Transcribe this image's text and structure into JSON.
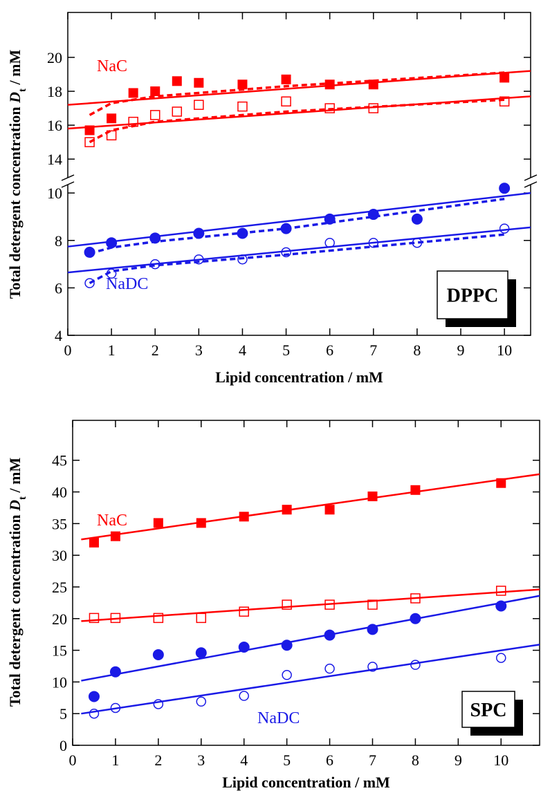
{
  "chart_data": [
    {
      "type": "scatter",
      "label": "DPPC",
      "xlabel": "Lipid concentration / mM",
      "ylabel": {
        "text": "Total detergent concentration ",
        "symbol": "D",
        "subscript": "t",
        "unit": " / mM"
      },
      "xlim": [
        0,
        10.6
      ],
      "xticks": [
        0,
        1,
        2,
        3,
        4,
        5,
        6,
        7,
        8,
        9,
        10
      ],
      "ysegments": [
        {
          "ylim": [
            4,
            10.5
          ]
        },
        {
          "ylim": [
            12.7,
            22.65
          ]
        }
      ],
      "yticks": [
        4,
        6,
        8,
        10,
        14,
        16,
        18,
        20
      ],
      "annotations": [
        {
          "text": "NaC",
          "color": "#ff0000"
        },
        {
          "text": "NaDC",
          "color": "#1a1ae6"
        }
      ],
      "series": [
        {
          "color": "#ff0000",
          "marker": "square",
          "filled": true,
          "x": [
            0.5,
            1,
            1.5,
            2,
            2.5,
            3,
            4,
            5,
            6,
            7,
            10
          ],
          "values": [
            15.7,
            16.4,
            17.9,
            18.0,
            18.6,
            18.5,
            18.4,
            18.7,
            18.4,
            18.4,
            18.8
          ]
        },
        {
          "color": "#ff0000",
          "marker": "square",
          "filled": false,
          "x": [
            0.5,
            1,
            1.5,
            2,
            2.5,
            3,
            4,
            5,
            6,
            7,
            10
          ],
          "values": [
            15.0,
            15.4,
            16.2,
            16.6,
            16.8,
            17.2,
            17.1,
            17.4,
            17.0,
            17.0,
            17.4
          ]
        },
        {
          "color": "#1a1ae6",
          "marker": "circle",
          "filled": true,
          "x": [
            0.5,
            1,
            2,
            3,
            4,
            5,
            6,
            7,
            8,
            10
          ],
          "values": [
            7.5,
            7.9,
            8.1,
            8.3,
            8.3,
            8.5,
            8.9,
            9.1,
            8.9,
            10.2
          ]
        },
        {
          "color": "#1a1ae6",
          "marker": "circle",
          "filled": false,
          "x": [
            0.5,
            1,
            2,
            3,
            4,
            5,
            6,
            7,
            8,
            10
          ],
          "values": [
            6.2,
            6.6,
            7.0,
            7.2,
            7.2,
            7.5,
            7.9,
            7.9,
            7.9,
            8.5
          ]
        },
        {
          "color": "#ff0000",
          "line": "solid",
          "x": [
            0,
            10.6
          ],
          "values": [
            17.2,
            19.2
          ]
        },
        {
          "color": "#ff0000",
          "line": "solid",
          "x": [
            0,
            10.6
          ],
          "values": [
            15.8,
            17.7
          ]
        },
        {
          "color": "#1a1ae6",
          "line": "solid",
          "x": [
            0,
            10.6
          ],
          "values": [
            7.74,
            10.0
          ]
        },
        {
          "color": "#1a1ae6",
          "line": "solid",
          "x": [
            0,
            10.6
          ],
          "values": [
            6.65,
            8.55
          ]
        },
        {
          "color": "#ff0000",
          "line": "dashed",
          "x": [
            0.5,
            1,
            2,
            5,
            10
          ],
          "values": [
            16.6,
            17.3,
            17.7,
            18.3,
            19.1
          ]
        },
        {
          "color": "#ff0000",
          "line": "dashed",
          "x": [
            0.5,
            1,
            2,
            5,
            10
          ],
          "values": [
            15.0,
            15.7,
            16.2,
            16.8,
            17.5
          ]
        },
        {
          "color": "#1a1ae6",
          "line": "dashed",
          "x": [
            0.5,
            1,
            2,
            5,
            10
          ],
          "values": [
            7.45,
            7.7,
            7.95,
            8.5,
            9.75
          ]
        },
        {
          "color": "#1a1ae6",
          "line": "dashed",
          "x": [
            0.5,
            1,
            2,
            5,
            10
          ],
          "values": [
            6.2,
            6.7,
            6.95,
            7.4,
            8.25
          ]
        }
      ]
    },
    {
      "type": "scatter",
      "label": "SPC",
      "xlabel": "Lipid concentration / mM",
      "ylabel": {
        "text": "Total detergent concentration ",
        "symbol": "D",
        "subscript": "t",
        "unit": " / mM"
      },
      "xlim": [
        0,
        10.9
      ],
      "xticks": [
        0,
        1,
        2,
        3,
        4,
        5,
        6,
        7,
        8,
        9,
        10
      ],
      "ylim": [
        0,
        51.3
      ],
      "yticks": [
        0,
        5,
        10,
        15,
        20,
        25,
        30,
        35,
        40,
        45
      ],
      "annotations": [
        {
          "text": "NaC",
          "color": "#ff0000"
        },
        {
          "text": "NaDC",
          "color": "#1a1ae6"
        }
      ],
      "series": [
        {
          "color": "#ff0000",
          "marker": "square",
          "filled": true,
          "x": [
            0.5,
            1,
            2,
            3,
            4,
            5,
            6,
            7,
            8,
            10
          ],
          "values": [
            32.0,
            33.0,
            35.1,
            35.1,
            36.1,
            37.2,
            37.2,
            39.3,
            40.3,
            41.4
          ]
        },
        {
          "color": "#ff0000",
          "marker": "square",
          "filled": false,
          "x": [
            0.5,
            1,
            2,
            3,
            4,
            5,
            6,
            7,
            8,
            10
          ],
          "values": [
            20.1,
            20.1,
            20.1,
            20.1,
            21.1,
            22.2,
            22.2,
            22.2,
            23.2,
            24.4
          ]
        },
        {
          "color": "#1a1ae6",
          "marker": "circle",
          "filled": true,
          "x": [
            0.5,
            1,
            2,
            3,
            4,
            5,
            6,
            7,
            8,
            10
          ],
          "values": [
            7.7,
            11.6,
            14.3,
            14.6,
            15.5,
            15.8,
            17.4,
            18.3,
            20.0,
            22.0
          ]
        },
        {
          "color": "#1a1ae6",
          "marker": "circle",
          "filled": false,
          "x": [
            0.5,
            1,
            2,
            3,
            4,
            5,
            6,
            7,
            8,
            10
          ],
          "values": [
            5.0,
            5.9,
            6.5,
            6.9,
            7.8,
            11.1,
            12.1,
            12.4,
            12.7,
            13.8
          ]
        },
        {
          "color": "#ff0000",
          "line": "solid",
          "x": [
            0.2,
            10.9
          ],
          "values": [
            32.5,
            42.8
          ]
        },
        {
          "color": "#ff0000",
          "line": "solid",
          "x": [
            0.2,
            10.9
          ],
          "values": [
            19.6,
            24.6
          ]
        },
        {
          "color": "#1a1ae6",
          "line": "solid",
          "x": [
            0.2,
            10.9
          ],
          "values": [
            10.2,
            23.6
          ]
        },
        {
          "color": "#1a1ae6",
          "line": "solid",
          "x": [
            0.2,
            10.9
          ],
          "values": [
            5.0,
            15.9
          ]
        }
      ]
    }
  ]
}
